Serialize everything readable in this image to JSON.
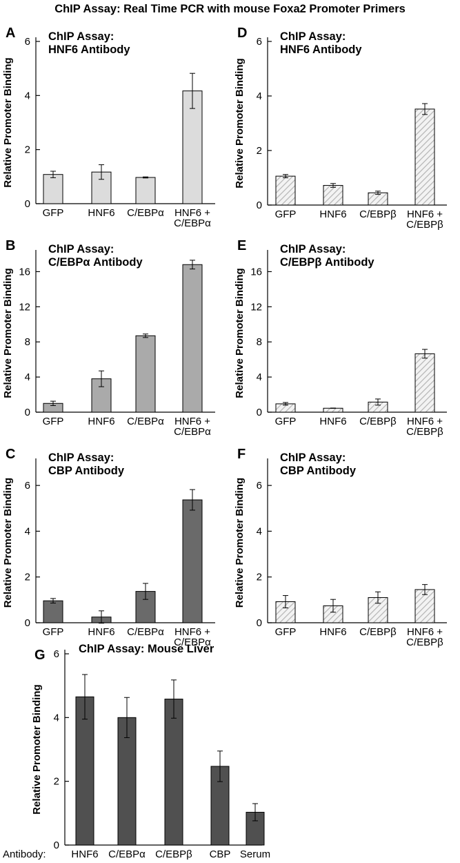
{
  "figure_title": "ChIP Assay: Real Time PCR with mouse Foxa2 Promoter Primers",
  "colors": {
    "light_gray": "#dcdcdc",
    "mid_gray": "#aaaaaa",
    "dark_gray": "#6a6a6a",
    "very_dark": "#505050",
    "hatch_stroke": "#b4b4b4"
  },
  "chart_data": [
    {
      "panel": "A",
      "type": "bar",
      "title_lines": [
        "ChIP Assay:",
        "HNF6 Antibody"
      ],
      "ylabel": "Relative Promoter Binding",
      "ylim": [
        0,
        6
      ],
      "yticks": [
        0,
        2,
        4,
        6
      ],
      "fill": "light_gray",
      "categories": [
        [
          "GFP"
        ],
        [
          "HNF6"
        ],
        [
          "C/EBPα"
        ],
        [
          "HNF6 +",
          "C/EBPα"
        ]
      ],
      "values": [
        1.08,
        1.17,
        0.97,
        4.17
      ],
      "errors": [
        0.12,
        0.27,
        0.02,
        0.65
      ]
    },
    {
      "panel": "B",
      "type": "bar",
      "title_lines": [
        "ChIP Assay:",
        "C/EBPα Antibody"
      ],
      "ylabel": "Relative Promoter Binding",
      "ylim": [
        0,
        18
      ],
      "yticks": [
        0,
        4,
        8,
        12,
        16
      ],
      "fill": "mid_gray",
      "categories": [
        [
          "GFP"
        ],
        [
          "HNF6"
        ],
        [
          "C/EBPα"
        ],
        [
          "HNF6 +",
          "C/EBPα"
        ]
      ],
      "values": [
        1.0,
        3.8,
        8.7,
        16.8
      ],
      "errors": [
        0.25,
        0.9,
        0.2,
        0.5
      ]
    },
    {
      "panel": "C",
      "type": "bar",
      "title_lines": [
        "ChIP Assay:",
        "CBP Antibody"
      ],
      "ylabel": "Relative Promoter Binding",
      "ylim": [
        0,
        7
      ],
      "yticks": [
        0,
        2,
        4,
        6
      ],
      "fill": "dark_gray",
      "categories": [
        [
          "GFP"
        ],
        [
          "HNF6"
        ],
        [
          "C/EBPα"
        ],
        [
          "HNF6 +",
          "C/EBPα"
        ]
      ],
      "values": [
        0.96,
        0.25,
        1.37,
        5.37
      ],
      "errors": [
        0.1,
        0.27,
        0.35,
        0.45
      ]
    },
    {
      "panel": "D",
      "type": "bar",
      "title_lines": [
        "ChIP Assay:",
        "HNF6 Antibody"
      ],
      "ylabel": "Relative Promoter Binding",
      "ylim": [
        0,
        6
      ],
      "yticks": [
        0,
        2,
        4,
        6
      ],
      "fill": "hatch",
      "categories": [
        [
          "GFP"
        ],
        [
          "HNF6"
        ],
        [
          "C/EBPβ"
        ],
        [
          "HNF6 +",
          "C/EBPβ"
        ]
      ],
      "values": [
        1.06,
        0.72,
        0.45,
        3.52
      ],
      "errors": [
        0.06,
        0.07,
        0.06,
        0.2
      ]
    },
    {
      "panel": "E",
      "type": "bar",
      "title_lines": [
        "ChIP Assay:",
        "C/EBPβ Antibody"
      ],
      "ylabel": "Relative Promoter Binding",
      "ylim": [
        0,
        18
      ],
      "yticks": [
        0,
        4,
        8,
        12,
        16
      ],
      "fill": "hatch",
      "categories": [
        [
          "GFP"
        ],
        [
          "HNF6"
        ],
        [
          "C/EBPβ"
        ],
        [
          "HNF6 +",
          "C/EBPβ"
        ]
      ],
      "values": [
        0.95,
        0.45,
        1.15,
        6.65
      ],
      "errors": [
        0.15,
        0.02,
        0.35,
        0.5
      ]
    },
    {
      "panel": "F",
      "type": "bar",
      "title_lines": [
        "ChIP Assay:",
        "CBP Antibody"
      ],
      "ylabel": "Relative Promoter Binding",
      "ylim": [
        0,
        7
      ],
      "yticks": [
        0,
        2,
        4,
        6
      ],
      "fill": "hatch",
      "categories": [
        [
          "GFP"
        ],
        [
          "HNF6"
        ],
        [
          "C/EBPβ"
        ],
        [
          "HNF6 +",
          "C/EBPβ"
        ]
      ],
      "values": [
        0.92,
        0.74,
        1.1,
        1.45
      ],
      "errors": [
        0.27,
        0.28,
        0.25,
        0.22
      ]
    },
    {
      "panel": "G",
      "type": "bar",
      "title_lines": [
        "ChIP Assay: Mouse Liver"
      ],
      "ylabel": "Relative Promoter Binding",
      "ylim": [
        0,
        6
      ],
      "yticks": [
        0,
        2,
        4,
        6
      ],
      "fill": "very_dark",
      "xprefix": "Antibody:",
      "categories": [
        [
          "HNF6"
        ],
        [
          "C/EBPα"
        ],
        [
          "C/EBPβ"
        ],
        [
          "CBP"
        ],
        [
          "Serum"
        ]
      ],
      "values": [
        4.65,
        4.0,
        4.58,
        2.47,
        1.03
      ],
      "errors": [
        0.7,
        0.63,
        0.6,
        0.48,
        0.27
      ]
    }
  ]
}
